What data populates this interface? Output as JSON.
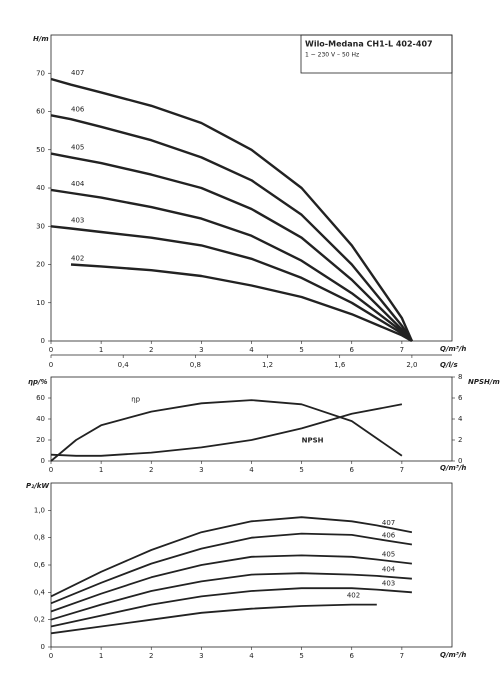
{
  "chart_data": [
    {
      "type": "line",
      "title": "Wilo-Medana CH1-L 402-407",
      "subtitle": "1 ~ 230 V – 50 Hz",
      "ylabel": "H/m",
      "xlabel": "Q/m³/h",
      "x2label": "Q/l/s",
      "x": [
        0,
        0.4,
        1,
        2,
        3,
        4,
        5,
        6,
        7,
        7.2
      ],
      "series": [
        {
          "name": "407",
          "color": "#222222",
          "values": [
            68.5,
            67,
            65,
            61.5,
            57,
            50,
            40,
            25,
            6,
            0
          ]
        },
        {
          "name": "406",
          "color": "#222222",
          "values": [
            59,
            58,
            56,
            52.5,
            48,
            42,
            33,
            20,
            4,
            0
          ]
        },
        {
          "name": "405",
          "color": "#222222",
          "values": [
            49,
            48,
            46.5,
            43.5,
            40,
            34.5,
            27,
            16,
            3,
            0
          ]
        },
        {
          "name": "404",
          "color": "#222222",
          "values": [
            39.5,
            38.7,
            37.5,
            35,
            32,
            27.5,
            21,
            12.5,
            2.5,
            0
          ]
        },
        {
          "name": "403",
          "color": "#222222",
          "values": [
            30,
            29.4,
            28.5,
            27,
            25,
            21.5,
            16.5,
            10,
            2,
            0
          ]
        },
        {
          "name": "402",
          "color": "#222222",
          "values": [
            null,
            20,
            19.5,
            18.5,
            17,
            14.5,
            11.5,
            7,
            1.5,
            0
          ]
        }
      ],
      "xlim": [
        0,
        8
      ],
      "ylim": [
        0,
        80
      ],
      "xticks": [
        0,
        1,
        2,
        3,
        4,
        5,
        6,
        7
      ],
      "yticks": [
        0,
        10,
        20,
        30,
        40,
        50,
        60,
        70
      ],
      "x2lim": [
        0,
        2.2222
      ],
      "x2ticks": [
        0,
        {
          "value": 0.4,
          "label": "0,4"
        },
        {
          "value": 0.8,
          "label": "0,8"
        },
        {
          "value": 1.2,
          "label": "1,2"
        },
        {
          "value": 1.6,
          "label": "1,6"
        },
        {
          "value": 2.0,
          "label": "2,0"
        }
      ]
    },
    {
      "type": "line",
      "ylabel": "ηp/%",
      "y2label": "NPSH/m",
      "xlabel": "Q/m³/h",
      "x": [
        0,
        0.5,
        1,
        2,
        3,
        4,
        5,
        6,
        7
      ],
      "series": [
        {
          "name": "ηp",
          "color": "#222222",
          "values": [
            0,
            20,
            34,
            47,
            55,
            58,
            54,
            38,
            5
          ]
        },
        {
          "name": "NPSH",
          "color": "#222222",
          "axis": "y2",
          "values": [
            0.6,
            0.5,
            0.5,
            0.8,
            1.3,
            2,
            3.1,
            4.5,
            5.4
          ]
        }
      ],
      "xlim": [
        0,
        8
      ],
      "ylim": [
        0,
        80
      ],
      "y2lim": [
        0,
        8
      ],
      "xticks": [
        0,
        1,
        2,
        3,
        4,
        5,
        6,
        7
      ],
      "yticks": [
        0,
        20,
        40,
        60
      ],
      "y2ticks": [
        0,
        2,
        4,
        6,
        8
      ]
    },
    {
      "type": "line",
      "ylabel": "P₂/kW",
      "xlabel": "Q/m³/h",
      "x": [
        0,
        1,
        2,
        3,
        4,
        5,
        6,
        6.5,
        7.2
      ],
      "series": [
        {
          "name": "407",
          "color": "#222222",
          "values": [
            0.37,
            0.55,
            0.71,
            0.84,
            0.92,
            0.95,
            0.92,
            0.89,
            0.84
          ]
        },
        {
          "name": "406",
          "color": "#222222",
          "values": [
            0.32,
            0.47,
            0.61,
            0.72,
            0.8,
            0.83,
            0.82,
            0.79,
            0.75
          ]
        },
        {
          "name": "405",
          "color": "#222222",
          "values": [
            0.26,
            0.39,
            0.51,
            0.6,
            0.66,
            0.67,
            0.66,
            0.64,
            0.61
          ]
        },
        {
          "name": "404",
          "color": "#222222",
          "values": [
            0.2,
            0.31,
            0.41,
            0.48,
            0.53,
            0.54,
            0.53,
            0.52,
            0.5
          ]
        },
        {
          "name": "403",
          "color": "#222222",
          "values": [
            0.15,
            0.23,
            0.31,
            0.37,
            0.41,
            0.43,
            0.43,
            0.42,
            0.4
          ]
        },
        {
          "name": "402",
          "color": "#222222",
          "values": [
            0.1,
            0.15,
            0.2,
            0.25,
            0.28,
            0.3,
            0.31,
            0.31,
            null
          ]
        }
      ],
      "xlim": [
        0,
        8
      ],
      "ylim": [
        0,
        1.2
      ],
      "xticks": [
        0,
        1,
        2,
        3,
        4,
        5,
        6,
        7
      ],
      "yticks": [
        0,
        {
          "value": 0.2,
          "label": "0,2"
        },
        {
          "value": 0.4,
          "label": "0,4"
        },
        {
          "value": 0.6,
          "label": "0,6"
        },
        {
          "value": 0.8,
          "label": "0,8"
        },
        {
          "value": 1,
          "label": "1,0"
        }
      ]
    }
  ]
}
